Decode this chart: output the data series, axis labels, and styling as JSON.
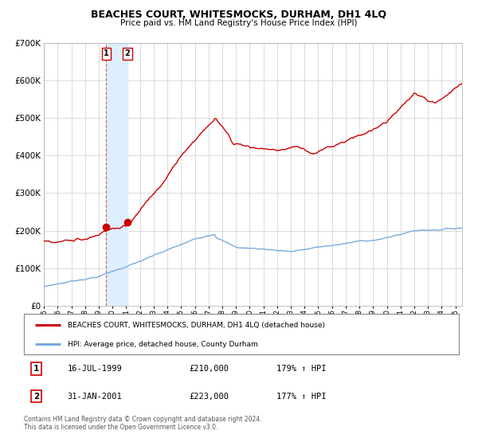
{
  "title": "BEACHES COURT, WHITESMOCKS, DURHAM, DH1 4LQ",
  "subtitle": "Price paid vs. HM Land Registry's House Price Index (HPI)",
  "legend_line1": "BEACHES COURT, WHITESMOCKS, DURHAM, DH1 4LQ (detached house)",
  "legend_line2": "HPI: Average price, detached house, County Durham",
  "table_rows": [
    {
      "num": "1",
      "date": "16-JUL-1999",
      "price": "£210,000",
      "hpi": "179% ↑ HPI"
    },
    {
      "num": "2",
      "date": "31-JAN-2001",
      "price": "£223,000",
      "hpi": "177% ↑ HPI"
    }
  ],
  "footnote": "Contains HM Land Registry data © Crown copyright and database right 2024.\nThis data is licensed under the Open Government Licence v3.0.",
  "sale1_x": 1999.54,
  "sale1_y": 210000,
  "sale2_x": 2001.08,
  "sale2_y": 223000,
  "vline1_x": 1999.54,
  "shade_x1": 1999.54,
  "shade_x2": 2001.08,
  "red_color": "#cc0000",
  "blue_color": "#7aaadd",
  "shade_color": "#ddeeff",
  "background_color": "#ffffff",
  "grid_color": "#cccccc",
  "ylim": [
    0,
    700000
  ],
  "xlim_start": 1995.0,
  "xlim_end": 2025.5,
  "yticks": [
    0,
    100000,
    200000,
    300000,
    400000,
    500000,
    600000,
    700000
  ]
}
